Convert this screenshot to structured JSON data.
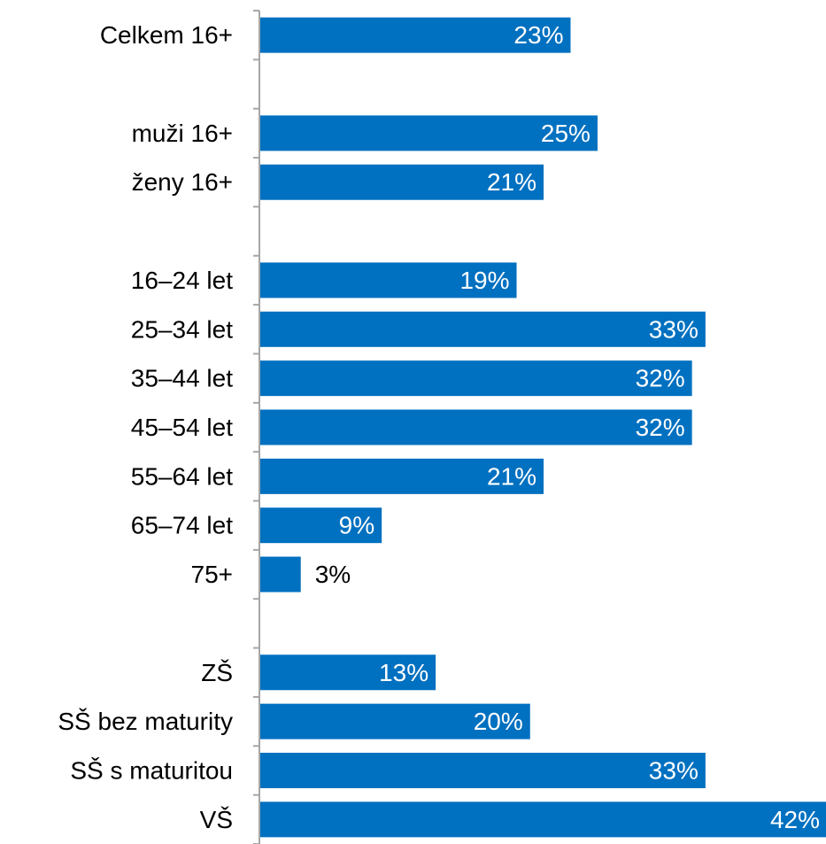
{
  "chart_data": {
    "type": "bar",
    "orientation": "horizontal",
    "categories": [
      "Celkem 16+",
      "",
      "muži 16+",
      "ženy 16+",
      "",
      "16–24 let",
      "25–34 let",
      "35–44 let",
      "45–54 let",
      "55–64 let",
      "65–74 let",
      "75+",
      "",
      "ZŠ",
      "SŠ bez maturity",
      "SŠ s maturitou",
      "VŠ"
    ],
    "values": [
      23,
      null,
      25,
      21,
      null,
      19,
      33,
      32,
      32,
      21,
      9,
      3,
      null,
      13,
      20,
      33,
      42
    ],
    "value_labels": [
      "23%",
      "",
      "25%",
      "21%",
      "",
      "19%",
      "33%",
      "32%",
      "32%",
      "21%",
      "9%",
      "3%",
      "",
      "13%",
      "20%",
      "33%",
      "42%"
    ],
    "value_unit": "%",
    "xlim": [
      0,
      42
    ],
    "title": "",
    "xlabel": "",
    "ylabel": "",
    "grid": false,
    "legend": "none",
    "colors": {
      "bar": "#0070C0",
      "label_inside": "#ffffff",
      "label_outside": "#000000",
      "axis": "#A6A6A6"
    }
  }
}
